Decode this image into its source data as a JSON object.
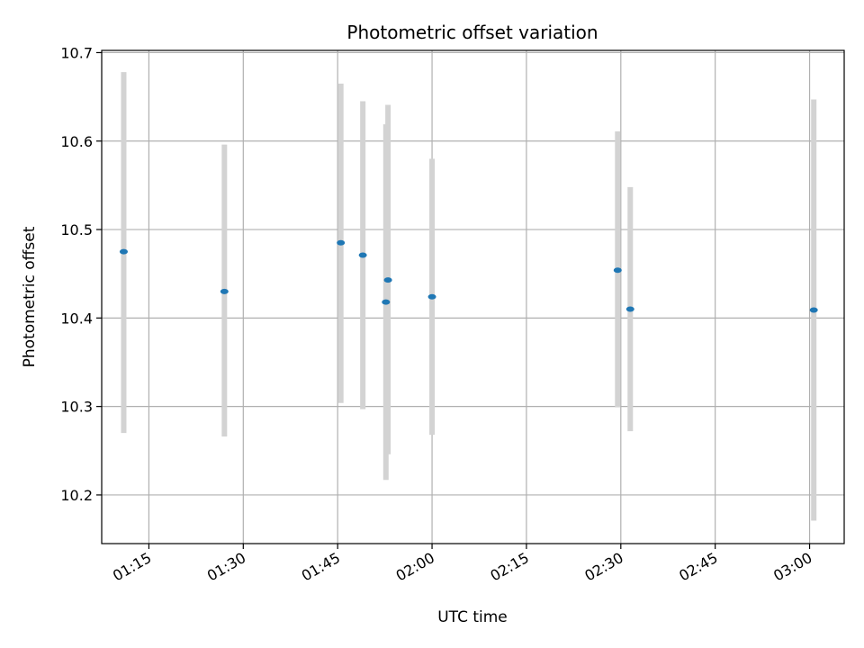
{
  "chart_data": {
    "type": "scatter",
    "title": "Photometric offset variation",
    "xlabel": "UTC time",
    "ylabel": "Photometric offset",
    "xlim": [
      "01:07:30",
      "03:05:30"
    ],
    "ylim": [
      10.145,
      10.7025
    ],
    "x_ticks": [
      "01:15",
      "01:30",
      "01:45",
      "02:00",
      "02:15",
      "02:30",
      "02:45",
      "03:00"
    ],
    "y_ticks": [
      "10.2",
      "10.3",
      "10.4",
      "10.5",
      "10.6",
      "10.7"
    ],
    "grid": true,
    "colors": {
      "point": "#1f77b4",
      "error_bar": "#d3d3d3",
      "grid": "#b0b0b0"
    },
    "points": [
      {
        "time": "01:11:00",
        "value": 10.475,
        "lower": 10.27,
        "upper": 10.678
      },
      {
        "time": "01:27:00",
        "value": 10.43,
        "lower": 10.266,
        "upper": 10.596
      },
      {
        "time": "01:45:30",
        "value": 10.485,
        "lower": 10.304,
        "upper": 10.665
      },
      {
        "time": "01:49:00",
        "value": 10.471,
        "lower": 10.297,
        "upper": 10.645
      },
      {
        "time": "01:52:40",
        "value": 10.418,
        "lower": 10.217,
        "upper": 10.619
      },
      {
        "time": "01:53:00",
        "value": 10.443,
        "lower": 10.246,
        "upper": 10.641
      },
      {
        "time": "02:00:00",
        "value": 10.424,
        "lower": 10.268,
        "upper": 10.58
      },
      {
        "time": "02:29:30",
        "value": 10.454,
        "lower": 10.299,
        "upper": 10.611
      },
      {
        "time": "02:31:30",
        "value": 10.41,
        "lower": 10.272,
        "upper": 10.548
      },
      {
        "time": "03:00:40",
        "value": 10.409,
        "lower": 10.171,
        "upper": 10.647
      }
    ]
  }
}
